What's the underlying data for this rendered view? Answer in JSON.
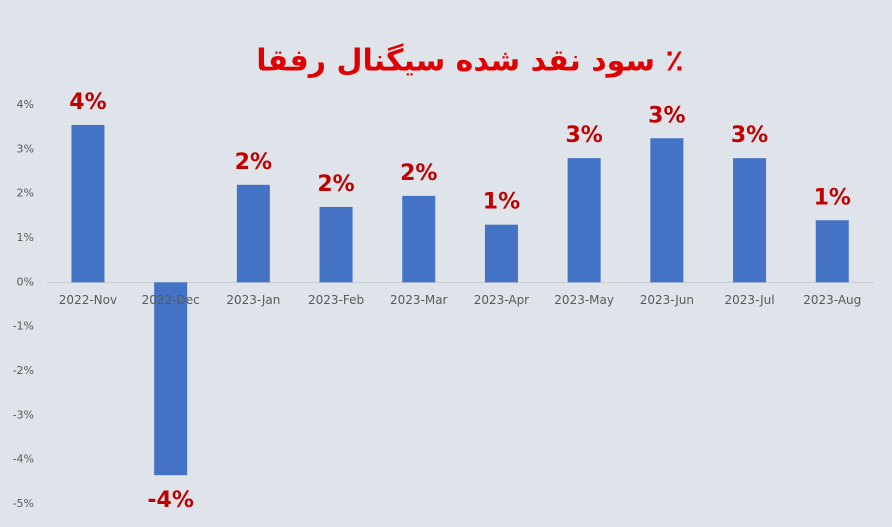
{
  "chart_data": {
    "type": "bar",
    "title": "٪ سود نقد شده سیگنال رفقا",
    "categories": [
      "2022-Nov",
      "2022-Dec",
      "2023-Jan",
      "2023-Feb",
      "2023-Mar",
      "2023-Apr",
      "2023-May",
      "2023-Jun",
      "2023-Jul",
      "2023-Aug"
    ],
    "values": [
      3.55,
      -4.35,
      2.2,
      1.7,
      1.95,
      1.3,
      2.8,
      3.25,
      2.8,
      1.4
    ],
    "value_labels": [
      "4%",
      "-4%",
      "2%",
      "2%",
      "2%",
      "1%",
      "3%",
      "3%",
      "3%",
      "1%"
    ],
    "color": "#4472c4",
    "ylim": [
      -5,
      4
    ],
    "yticks": [
      {
        "value": 4,
        "label": "4%"
      },
      {
        "value": 3,
        "label": "3%"
      },
      {
        "value": 2,
        "label": "2%"
      },
      {
        "value": 1,
        "label": "1%"
      },
      {
        "value": 0,
        "label": "0%"
      },
      {
        "value": -1,
        "label": "-1%"
      },
      {
        "value": -2,
        "label": "-2%"
      },
      {
        "value": -3,
        "label": "-3%"
      },
      {
        "value": -4,
        "label": "-4%"
      },
      {
        "value": -5,
        "label": "-5%"
      }
    ],
    "grid": false
  }
}
